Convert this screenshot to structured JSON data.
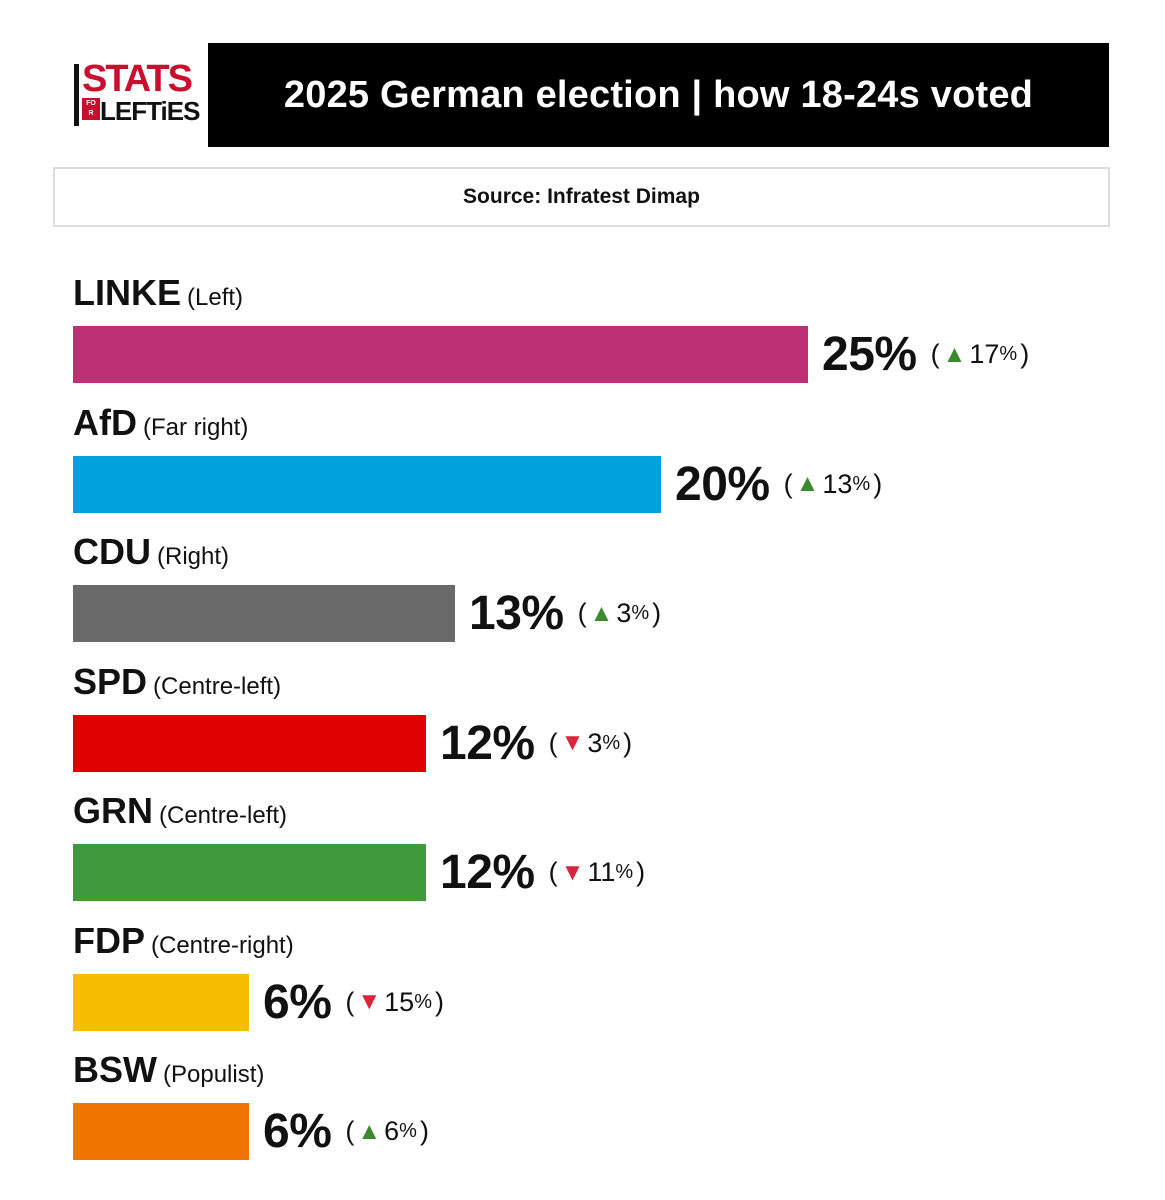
{
  "logo": {
    "line1": "STATS",
    "for": "FOR",
    "line2": "LEFTiES"
  },
  "title": "2025 German election | how 18-24s voted",
  "source": "Source: Infratest Dimap",
  "colors": {
    "LINKE": "#be3075",
    "AfD": "#00a2dd",
    "CDU": "#6a6a6a",
    "SPD": "#df0000",
    "GRN": "#409a3c",
    "FDP": "#f5be00",
    "BSW": "#ef7600",
    "up": "#3c8a2e",
    "down": "#d7263d"
  },
  "chart_data": {
    "type": "bar",
    "orientation": "horizontal",
    "categories": [
      "LINKE",
      "AfD",
      "CDU",
      "SPD",
      "GRN",
      "FDP",
      "BSW"
    ],
    "descriptors": [
      "(Left)",
      "(Far right)",
      "(Right)",
      "(Centre-left)",
      "(Centre-left)",
      "(Centre-right)",
      "(Populist)"
    ],
    "values": [
      25,
      20,
      13,
      12,
      12,
      6,
      6
    ],
    "value_labels": [
      "25%",
      "20%",
      "13%",
      "12%",
      "12%",
      "6%",
      "6%"
    ],
    "changes": [
      17,
      13,
      3,
      -3,
      -11,
      -15,
      6
    ],
    "change_labels": [
      "17",
      "13",
      "3",
      "3",
      "11",
      "15",
      "6"
    ],
    "unit": "%",
    "xlim": [
      0,
      25
    ]
  }
}
